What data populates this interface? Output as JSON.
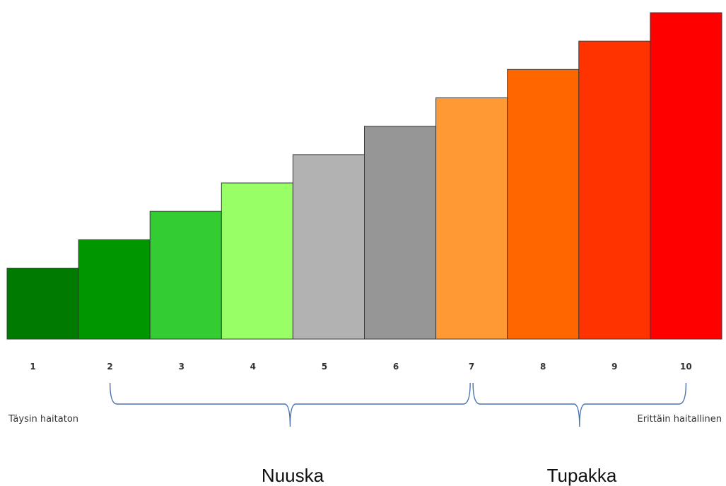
{
  "chart_data": {
    "type": "bar",
    "categories": [
      "1",
      "2",
      "3",
      "4",
      "5",
      "6",
      "7",
      "8",
      "9",
      "10"
    ],
    "values": [
      1,
      2,
      3,
      4,
      5,
      6,
      7,
      8,
      9,
      10
    ],
    "colors": [
      "#007a00",
      "#009600",
      "#33cc33",
      "#99ff66",
      "#b2b2b2",
      "#969696",
      "#ff9933",
      "#ff6600",
      "#ff3300",
      "#ff0000"
    ],
    "ylim": [
      0,
      11.5
    ],
    "scale_labels": {
      "low": "Täysin haitaton",
      "high": "Erittäin haitallinen"
    },
    "groups": [
      {
        "name": "Nuuska",
        "from": "2",
        "to": "7"
      },
      {
        "name": "Tupakka",
        "from": "7",
        "to": "10"
      }
    ]
  }
}
